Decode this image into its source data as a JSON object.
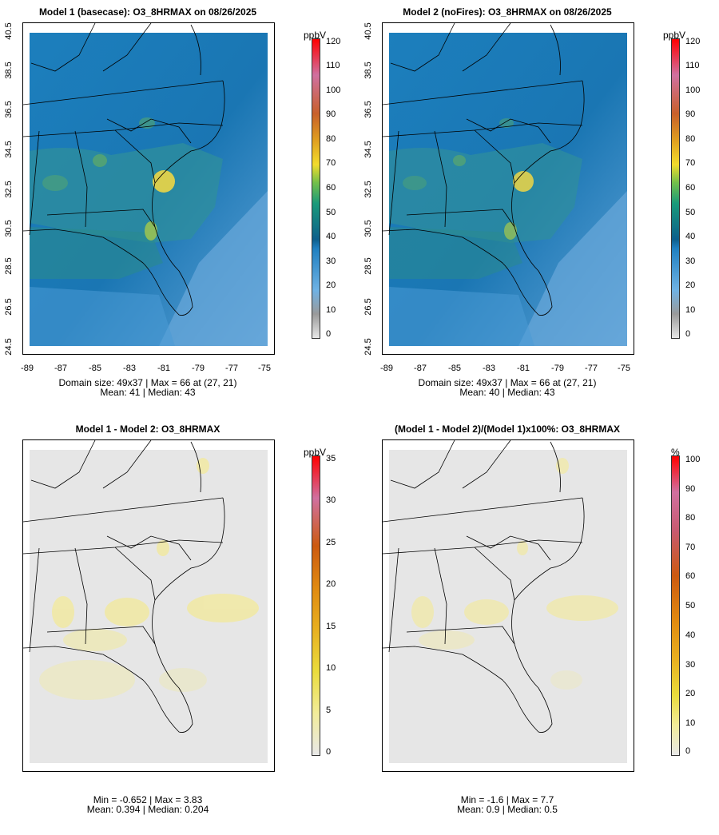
{
  "panels": [
    {
      "title": "Model 1 (basecase): O3_8HRMAX on 08/26/2025",
      "caption_line1": "Domain size: 49x37 | Max = 66 at (27, 21)",
      "caption_line2": "Mean: 41 |  Median: 43",
      "units": "ppbV",
      "colorbar_ticks": [
        "0",
        "10",
        "20",
        "30",
        "40",
        "50",
        "60",
        "70",
        "80",
        "90",
        "100",
        "110",
        "120"
      ],
      "x_ticks": [
        "-89",
        "-87",
        "-85",
        "-83",
        "-81",
        "-79",
        "-77",
        "-75"
      ],
      "y_ticks": [
        "24.5",
        "26.5",
        "28.5",
        "30.5",
        "32.5",
        "34.5",
        "36.5",
        "38.5",
        "40.5"
      ]
    },
    {
      "title": "Model 2 (noFires): O3_8HRMAX on 08/26/2025",
      "caption_line1": "Domain size: 49x37 | Max = 66 at (27, 21)",
      "caption_line2": "Mean: 40 |  Median: 43",
      "units": "ppbV",
      "colorbar_ticks": [
        "0",
        "10",
        "20",
        "30",
        "40",
        "50",
        "60",
        "70",
        "80",
        "90",
        "100",
        "110",
        "120"
      ],
      "x_ticks": [
        "-89",
        "-87",
        "-85",
        "-83",
        "-81",
        "-79",
        "-77",
        "-75"
      ],
      "y_ticks": [
        "24.5",
        "26.5",
        "28.5",
        "30.5",
        "32.5",
        "34.5",
        "36.5",
        "38.5",
        "40.5"
      ]
    },
    {
      "title": "Model 1 - Model 2: O3_8HRMAX",
      "caption_line1": "Min = -0.652 | Max = 3.83",
      "caption_line2": "Mean: 0.394 |  Median: 0.204",
      "units": "ppbV",
      "colorbar_ticks": [
        "0",
        "5",
        "10",
        "15",
        "20",
        "25",
        "30",
        "35"
      ]
    },
    {
      "title": "(Model 1 - Model 2)/(Model 1)x100%: O3_8HRMAX",
      "caption_line1": "Min = -1.6 | Max = 7.7",
      "caption_line2": "Mean: 0.9 |  Median: 0.5",
      "units": "%",
      "colorbar_ticks": [
        "0",
        "10",
        "20",
        "30",
        "40",
        "50",
        "60",
        "70",
        "80",
        "90",
        "100"
      ]
    }
  ],
  "colors": {
    "ocean_low": "#6aa8dc",
    "land_mid": "#1b78b4",
    "land_green": "#3a9a8a",
    "hotspot": "#e3d24a",
    "diff_background": "#e6e6e6",
    "diff_yellow": "#f1e9a6"
  }
}
